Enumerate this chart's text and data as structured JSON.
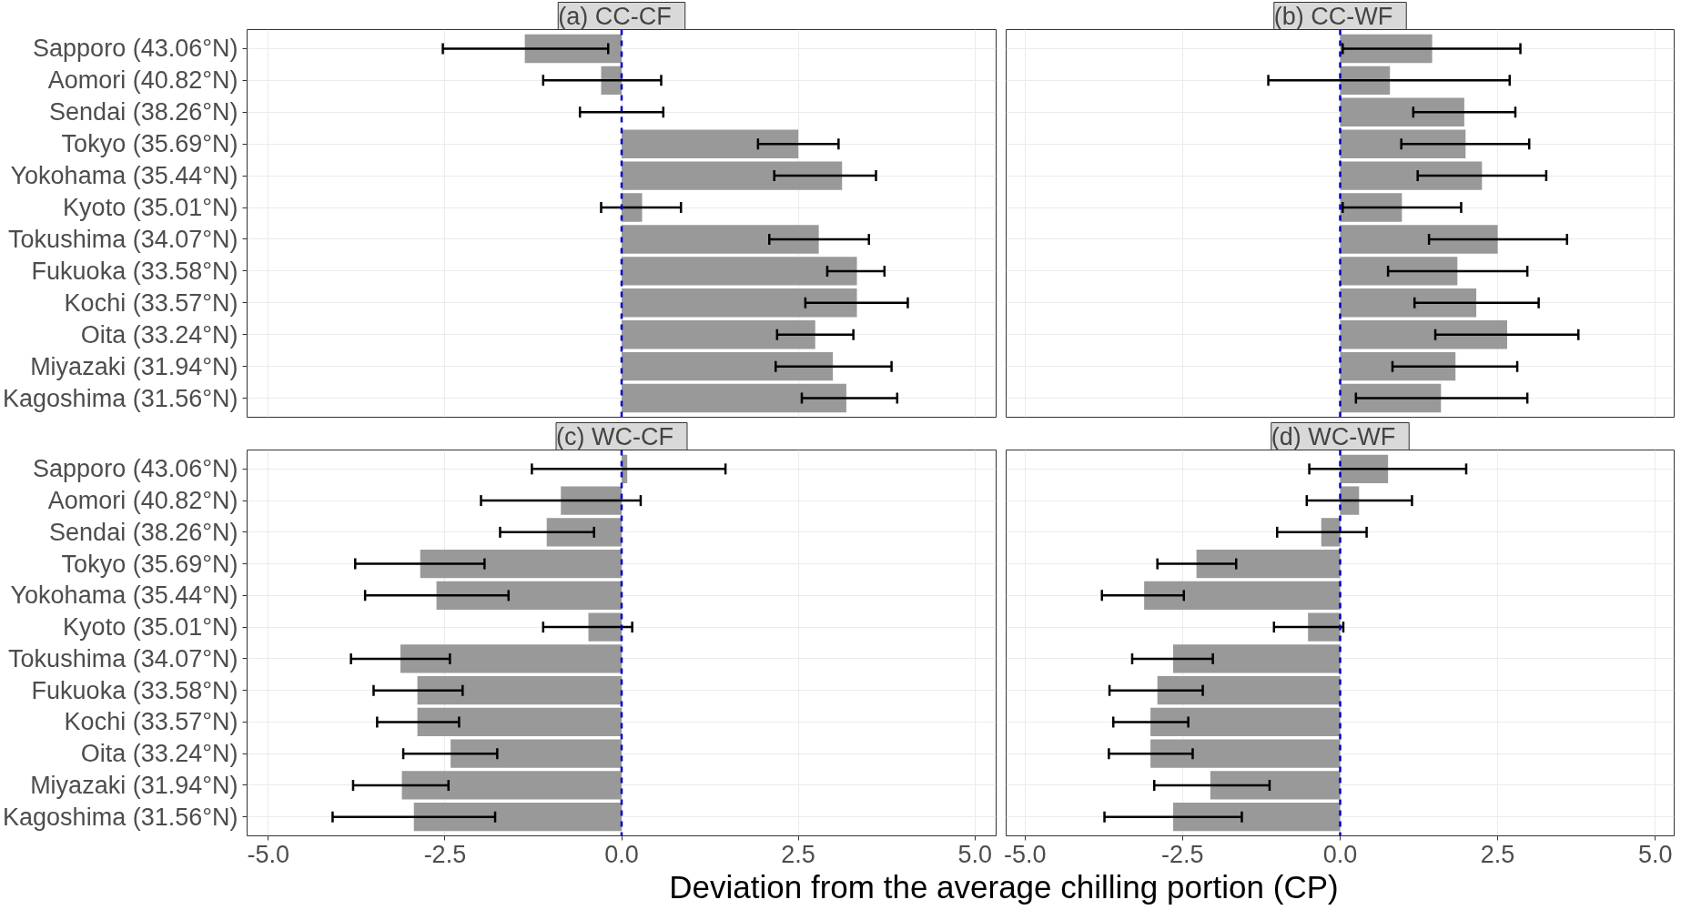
{
  "chart_data": [
    {
      "type": "bar",
      "orientation": "horizontal",
      "title": "(a)   CC-CF",
      "tick_labels": "y",
      "grid": true,
      "color": "#999999",
      "categories": [
        "Sapporo (43.06°N)",
        "Aomori (40.82°N)",
        "Sendai (38.26°N)",
        "Tokyo (35.69°N)",
        "Yokohama (35.44°N)",
        "Kyoto (35.01°N)",
        "Tokushima (34.07°N)",
        "Fukuoka (33.58°N)",
        "Kochi (33.57°N)",
        "Oita (33.24°N)",
        "Miyazaki (31.94°N)",
        "Kagoshima (31.56°N)"
      ],
      "values": [
        -1.37,
        -0.29,
        0.0,
        2.5,
        3.12,
        0.29,
        2.79,
        3.33,
        3.33,
        2.74,
        2.99,
        3.18
      ],
      "errors": [
        [
          -2.53,
          -0.19
        ],
        [
          -1.11,
          0.56
        ],
        [
          -0.59,
          0.59
        ],
        [
          1.93,
          3.07
        ],
        [
          2.16,
          3.6
        ],
        [
          -0.29,
          0.84
        ],
        [
          2.09,
          3.5
        ],
        [
          2.91,
          3.72
        ],
        [
          2.6,
          4.05
        ],
        [
          2.2,
          3.28
        ],
        [
          2.18,
          3.82
        ],
        [
          2.55,
          3.9
        ]
      ],
      "xlim": [
        -5.3,
        5.3
      ],
      "xticks": [
        -5,
        -2.5,
        0,
        2.5,
        5
      ],
      "ref_lines": [
        {
          "axis": "x",
          "value": 0,
          "color": "#0000cc",
          "line_style": "dashed"
        }
      ]
    },
    {
      "type": "bar",
      "orientation": "horizontal",
      "title": "(b)   CC-WF",
      "tick_labels": false,
      "grid": true,
      "color": "#999999",
      "categories": [
        null,
        null,
        null,
        null,
        null,
        null,
        null,
        null,
        null,
        null,
        null,
        null
      ],
      "values": [
        1.46,
        0.79,
        1.97,
        1.99,
        2.25,
        0.98,
        2.5,
        1.86,
        2.16,
        2.65,
        1.83,
        1.6
      ],
      "errors": [
        [
          0.04,
          2.86
        ],
        [
          -1.14,
          2.69
        ],
        [
          1.16,
          2.78
        ],
        [
          0.97,
          3.0
        ],
        [
          1.23,
          3.27
        ],
        [
          0.04,
          1.92
        ],
        [
          1.41,
          3.6
        ],
        [
          0.76,
          2.97
        ],
        [
          1.18,
          3.15
        ],
        [
          1.51,
          3.78
        ],
        [
          0.83,
          2.81
        ],
        [
          0.25,
          2.97
        ]
      ],
      "xlim": [
        -5.3,
        5.3
      ],
      "xticks": [
        -5,
        -2.5,
        0,
        2.5,
        5
      ],
      "ref_lines": [
        {
          "axis": "x",
          "value": 0,
          "color": "#0000cc",
          "line_style": "dashed"
        }
      ]
    },
    {
      "type": "bar",
      "orientation": "horizontal",
      "title": "(c)   WC-CF",
      "grid": true,
      "color": "#999999",
      "categories": [
        "Sapporo (43.06°N)",
        "Aomori (40.82°N)",
        "Sendai (38.26°N)",
        "Tokyo (35.69°N)",
        "Yokohama (35.44°N)",
        "Kyoto (35.01°N)",
        "Tokushima (34.07°N)",
        "Fukuoka (33.58°N)",
        "Kochi (33.57°N)",
        "Oita (33.24°N)",
        "Miyazaki (31.94°N)",
        "Kagoshima (31.56°N)"
      ],
      "values": [
        0.08,
        -0.86,
        -1.06,
        -2.85,
        -2.62,
        -0.47,
        -3.13,
        -2.89,
        -2.89,
        -2.42,
        -3.11,
        -2.94
      ],
      "errors": [
        [
          -1.27,
          1.47
        ],
        [
          -1.99,
          0.27
        ],
        [
          -1.72,
          -0.39
        ],
        [
          -3.77,
          -1.94
        ],
        [
          -3.63,
          -1.6
        ],
        [
          -1.11,
          0.15
        ],
        [
          -3.83,
          -2.43
        ],
        [
          -3.51,
          -2.25
        ],
        [
          -3.46,
          -2.3
        ],
        [
          -3.09,
          -1.76
        ],
        [
          -3.8,
          -2.45
        ],
        [
          -4.09,
          -1.79
        ]
      ],
      "xlim": [
        -5.3,
        5.3
      ],
      "xticks": [
        {
          "value": -5,
          "label": "-5.0"
        },
        {
          "value": -2.5,
          "label": "-2.5"
        },
        {
          "value": 0,
          "label": "0.0"
        },
        {
          "value": 2.5,
          "label": "2.5"
        },
        {
          "value": 5,
          "label": "5.0"
        }
      ],
      "ref_lines": [
        {
          "axis": "x",
          "value": 0,
          "color": "#0000cc",
          "line_style": "dashed"
        }
      ]
    },
    {
      "type": "bar",
      "orientation": "horizontal",
      "title": "(d)   WC-WF",
      "tick_labels": "x",
      "grid": true,
      "color": "#999999",
      "xlabel": "Deviation from the average chilling portion (CP)",
      "categories": [
        null,
        null,
        null,
        null,
        null,
        null,
        null,
        null,
        null,
        null,
        null,
        null
      ],
      "values": [
        0.76,
        0.3,
        -0.3,
        -2.28,
        -3.11,
        -0.51,
        -2.65,
        -2.9,
        -3.01,
        -3.01,
        -2.06,
        -2.65
      ],
      "errors": [
        [
          -0.49,
          2.0
        ],
        [
          -0.53,
          1.14
        ],
        [
          -1.0,
          0.42
        ],
        [
          -2.9,
          -1.65
        ],
        [
          -3.78,
          -2.48
        ],
        [
          -1.05,
          0.05
        ],
        [
          -3.3,
          -2.02
        ],
        [
          -3.66,
          -2.18
        ],
        [
          -3.6,
          -2.41
        ],
        [
          -3.67,
          -2.34
        ],
        [
          -2.95,
          -1.12
        ],
        [
          -3.74,
          -1.56
        ]
      ],
      "xlim": [
        -5.3,
        5.3
      ],
      "xticks": [
        {
          "value": -5,
          "label": "-5.0"
        },
        {
          "value": -2.5,
          "label": "-2.5"
        },
        {
          "value": 0,
          "label": "0.0"
        },
        {
          "value": 2.5,
          "label": "2.5"
        },
        {
          "value": 5,
          "label": "5.0"
        }
      ],
      "ref_lines": [
        {
          "axis": "x",
          "value": 0,
          "color": "#0000cc",
          "line_style": "dashed"
        }
      ]
    }
  ]
}
